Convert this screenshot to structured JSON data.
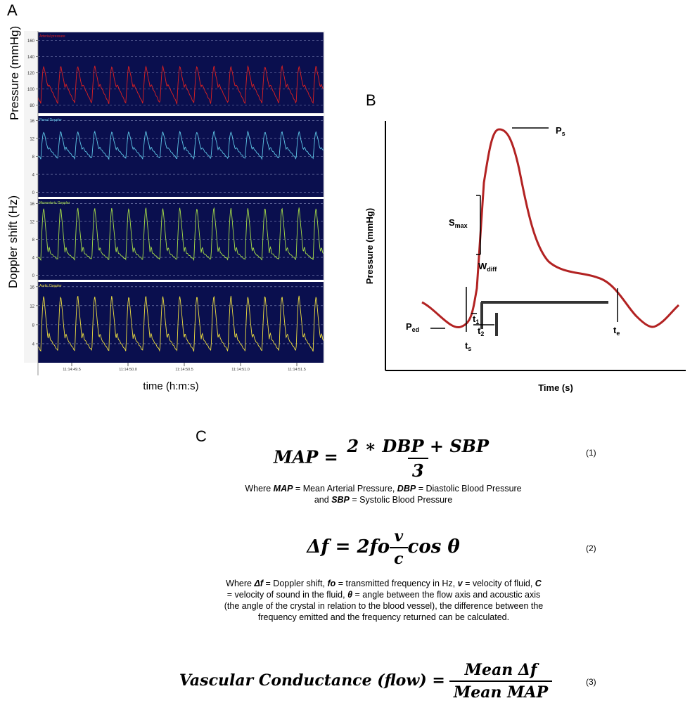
{
  "panel_a": {
    "letter": "A",
    "ylabel_pressure": "Pressure (mmHg)",
    "ylabel_doppler": "Doppler shift (Hz)",
    "xlabel": "time (h:m:s)",
    "strips": [
      {
        "name": "Arterial pressure",
        "color": "#e02020",
        "ticks": [
          "160",
          "140",
          "120",
          "100",
          "80"
        ],
        "min": 70,
        "max": 170,
        "high": 128,
        "notch": 102,
        "low": 82
      },
      {
        "name": "Renal Doppler",
        "color": "#5fc8e8",
        "ticks": [
          "16",
          "12",
          "8",
          "4",
          "0"
        ],
        "min": -1,
        "max": 17,
        "high": 13.5,
        "notch": 9.5,
        "low": 7.5
      },
      {
        "name": "Mesenteric Doppler",
        "color": "#a8e048",
        "ticks": [
          "16",
          "12",
          "8",
          "4",
          "0"
        ],
        "min": -1,
        "max": 17,
        "high": 15,
        "notch": 5,
        "low": 3.5
      },
      {
        "name": "Aortic Doppler",
        "color": "#f0e040",
        "ticks": [
          "16",
          "12",
          "8",
          "4"
        ],
        "min": 0,
        "max": 17,
        "high": 14,
        "notch": 5,
        "low": 2.5
      }
    ],
    "time_ticks": [
      "11:14:49.5",
      "11:14:50.0",
      "11:14:50.5",
      "11:14:51.0",
      "11:14:51.5"
    ]
  },
  "panel_b": {
    "letter": "B",
    "ylabel": "Pressure (mmHg)",
    "xlabel": "Time (s)",
    "curve_color": "#b22222",
    "labels": {
      "ps": {
        "main": "P",
        "sub": "s"
      },
      "smax": {
        "main": "S",
        "sub": "max"
      },
      "wdiff": {
        "main": "W",
        "sub": "diff"
      },
      "ped": {
        "main": "P",
        "sub": "ed"
      },
      "ts": {
        "main": "t",
        "sub": "s"
      },
      "t1": {
        "main": "t",
        "sub": "1"
      },
      "t2": {
        "main": "t",
        "sub": "2"
      },
      "te": {
        "main": "t",
        "sub": "e"
      }
    }
  },
  "panel_c": {
    "letter": "C",
    "eq1": {
      "lhs": "MAP =",
      "num": "2 ∗ DBP + SBP",
      "den": "3",
      "number": "(1)"
    },
    "eq1_caption": {
      "w1": "Where",
      "t1": "MAP",
      "d1": "= Mean Arterial Pressure,",
      "t2": "DBP",
      "d2": "= Diastolic Blood Pressure",
      "w2": "and",
      "t3": "SBP",
      "d3": "= Systolic Blood Pressure"
    },
    "eq2": {
      "lhs": "Δf = 2fo",
      "num": "v",
      "den": "c",
      "rhs": "cos θ",
      "number": "(2)"
    },
    "eq2_caption": {
      "w1": "Where",
      "t1": "Δf",
      "d1": "= Doppler shift,",
      "t2": "fo",
      "d2": "= transmitted frequency in Hz,",
      "t3": "v",
      "d3": "= velocity of fluid,",
      "t4": "C",
      "d4": "= velocity of sound in the fluid,",
      "t5": "θ",
      "d5": "= angle between the flow axis and acoustic axis (the angle of the crystal in relation to the blood vessel), the difference between the frequency emitted and the frequency returned can be calculated."
    },
    "eq3": {
      "lhs": "Vascular Conductance (flow) =",
      "num": "Mean Δf",
      "den": "Mean MAP",
      "number": "(3)"
    }
  }
}
